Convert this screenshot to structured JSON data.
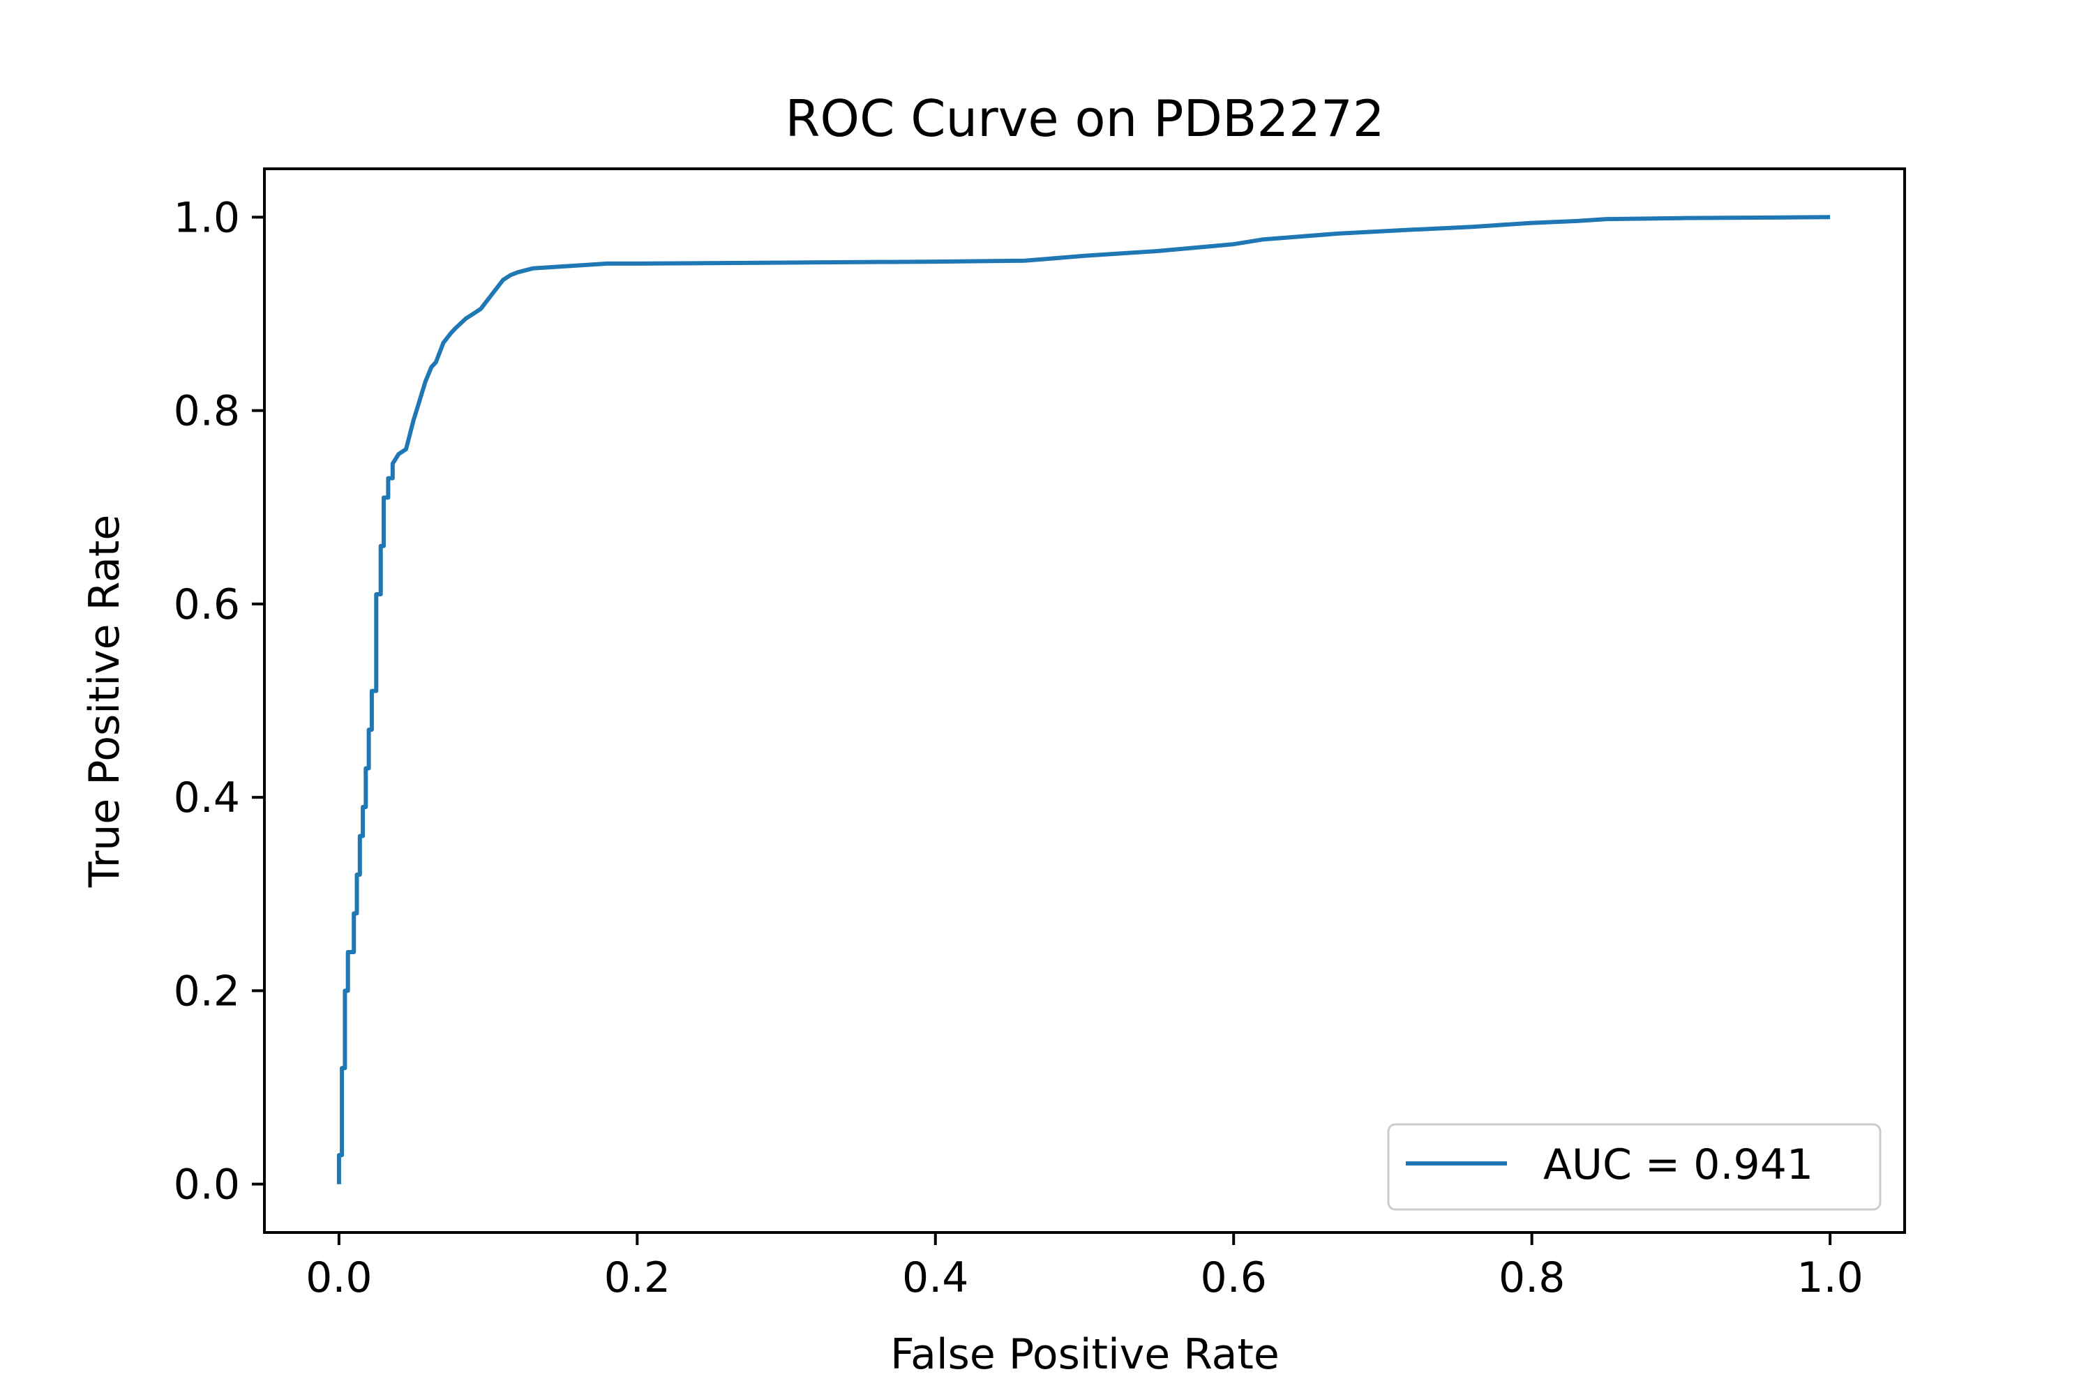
{
  "chart_data": {
    "type": "line",
    "title": "ROC Curve on PDB2272",
    "xlabel": "False Positive Rate",
    "ylabel": "True Positive Rate",
    "xlim": [
      -0.05,
      1.05
    ],
    "ylim": [
      -0.05,
      1.05
    ],
    "xticks": [
      "0.0",
      "0.2",
      "0.4",
      "0.6",
      "0.8",
      "1.0"
    ],
    "yticks": [
      "0.0",
      "0.2",
      "0.4",
      "0.6",
      "0.8",
      "1.0"
    ],
    "grid": false,
    "legend": {
      "placement": "lower-right"
    },
    "series": [
      {
        "name": "AUC = 0.941",
        "color": "#1f77b4",
        "x": [
          0.0,
          0.0,
          0.002,
          0.002,
          0.004,
          0.004,
          0.006,
          0.006,
          0.01,
          0.01,
          0.012,
          0.012,
          0.014,
          0.014,
          0.016,
          0.016,
          0.018,
          0.018,
          0.02,
          0.02,
          0.022,
          0.022,
          0.025,
          0.025,
          0.028,
          0.028,
          0.03,
          0.03,
          0.033,
          0.033,
          0.036,
          0.036,
          0.04,
          0.045,
          0.05,
          0.052,
          0.055,
          0.058,
          0.062,
          0.065,
          0.07,
          0.075,
          0.078,
          0.085,
          0.09,
          0.095,
          0.1,
          0.105,
          0.11,
          0.115,
          0.12,
          0.13,
          0.14,
          0.16,
          0.18,
          0.2,
          0.3,
          0.4,
          0.46,
          0.5,
          0.55,
          0.6,
          0.62,
          0.67,
          0.72,
          0.76,
          0.8,
          0.83,
          0.85,
          0.9,
          1.0
        ],
        "y": [
          0.0,
          0.03,
          0.03,
          0.12,
          0.12,
          0.2,
          0.2,
          0.24,
          0.24,
          0.28,
          0.28,
          0.32,
          0.32,
          0.36,
          0.36,
          0.39,
          0.39,
          0.43,
          0.43,
          0.47,
          0.47,
          0.51,
          0.51,
          0.61,
          0.61,
          0.66,
          0.66,
          0.71,
          0.71,
          0.73,
          0.73,
          0.745,
          0.755,
          0.76,
          0.79,
          0.8,
          0.815,
          0.83,
          0.845,
          0.85,
          0.87,
          0.88,
          0.885,
          0.895,
          0.9,
          0.905,
          0.915,
          0.925,
          0.935,
          0.94,
          0.943,
          0.947,
          0.948,
          0.95,
          0.952,
          0.952,
          0.953,
          0.954,
          0.955,
          0.96,
          0.965,
          0.972,
          0.977,
          0.983,
          0.987,
          0.99,
          0.994,
          0.996,
          0.998,
          0.999,
          1.0
        ]
      }
    ]
  }
}
